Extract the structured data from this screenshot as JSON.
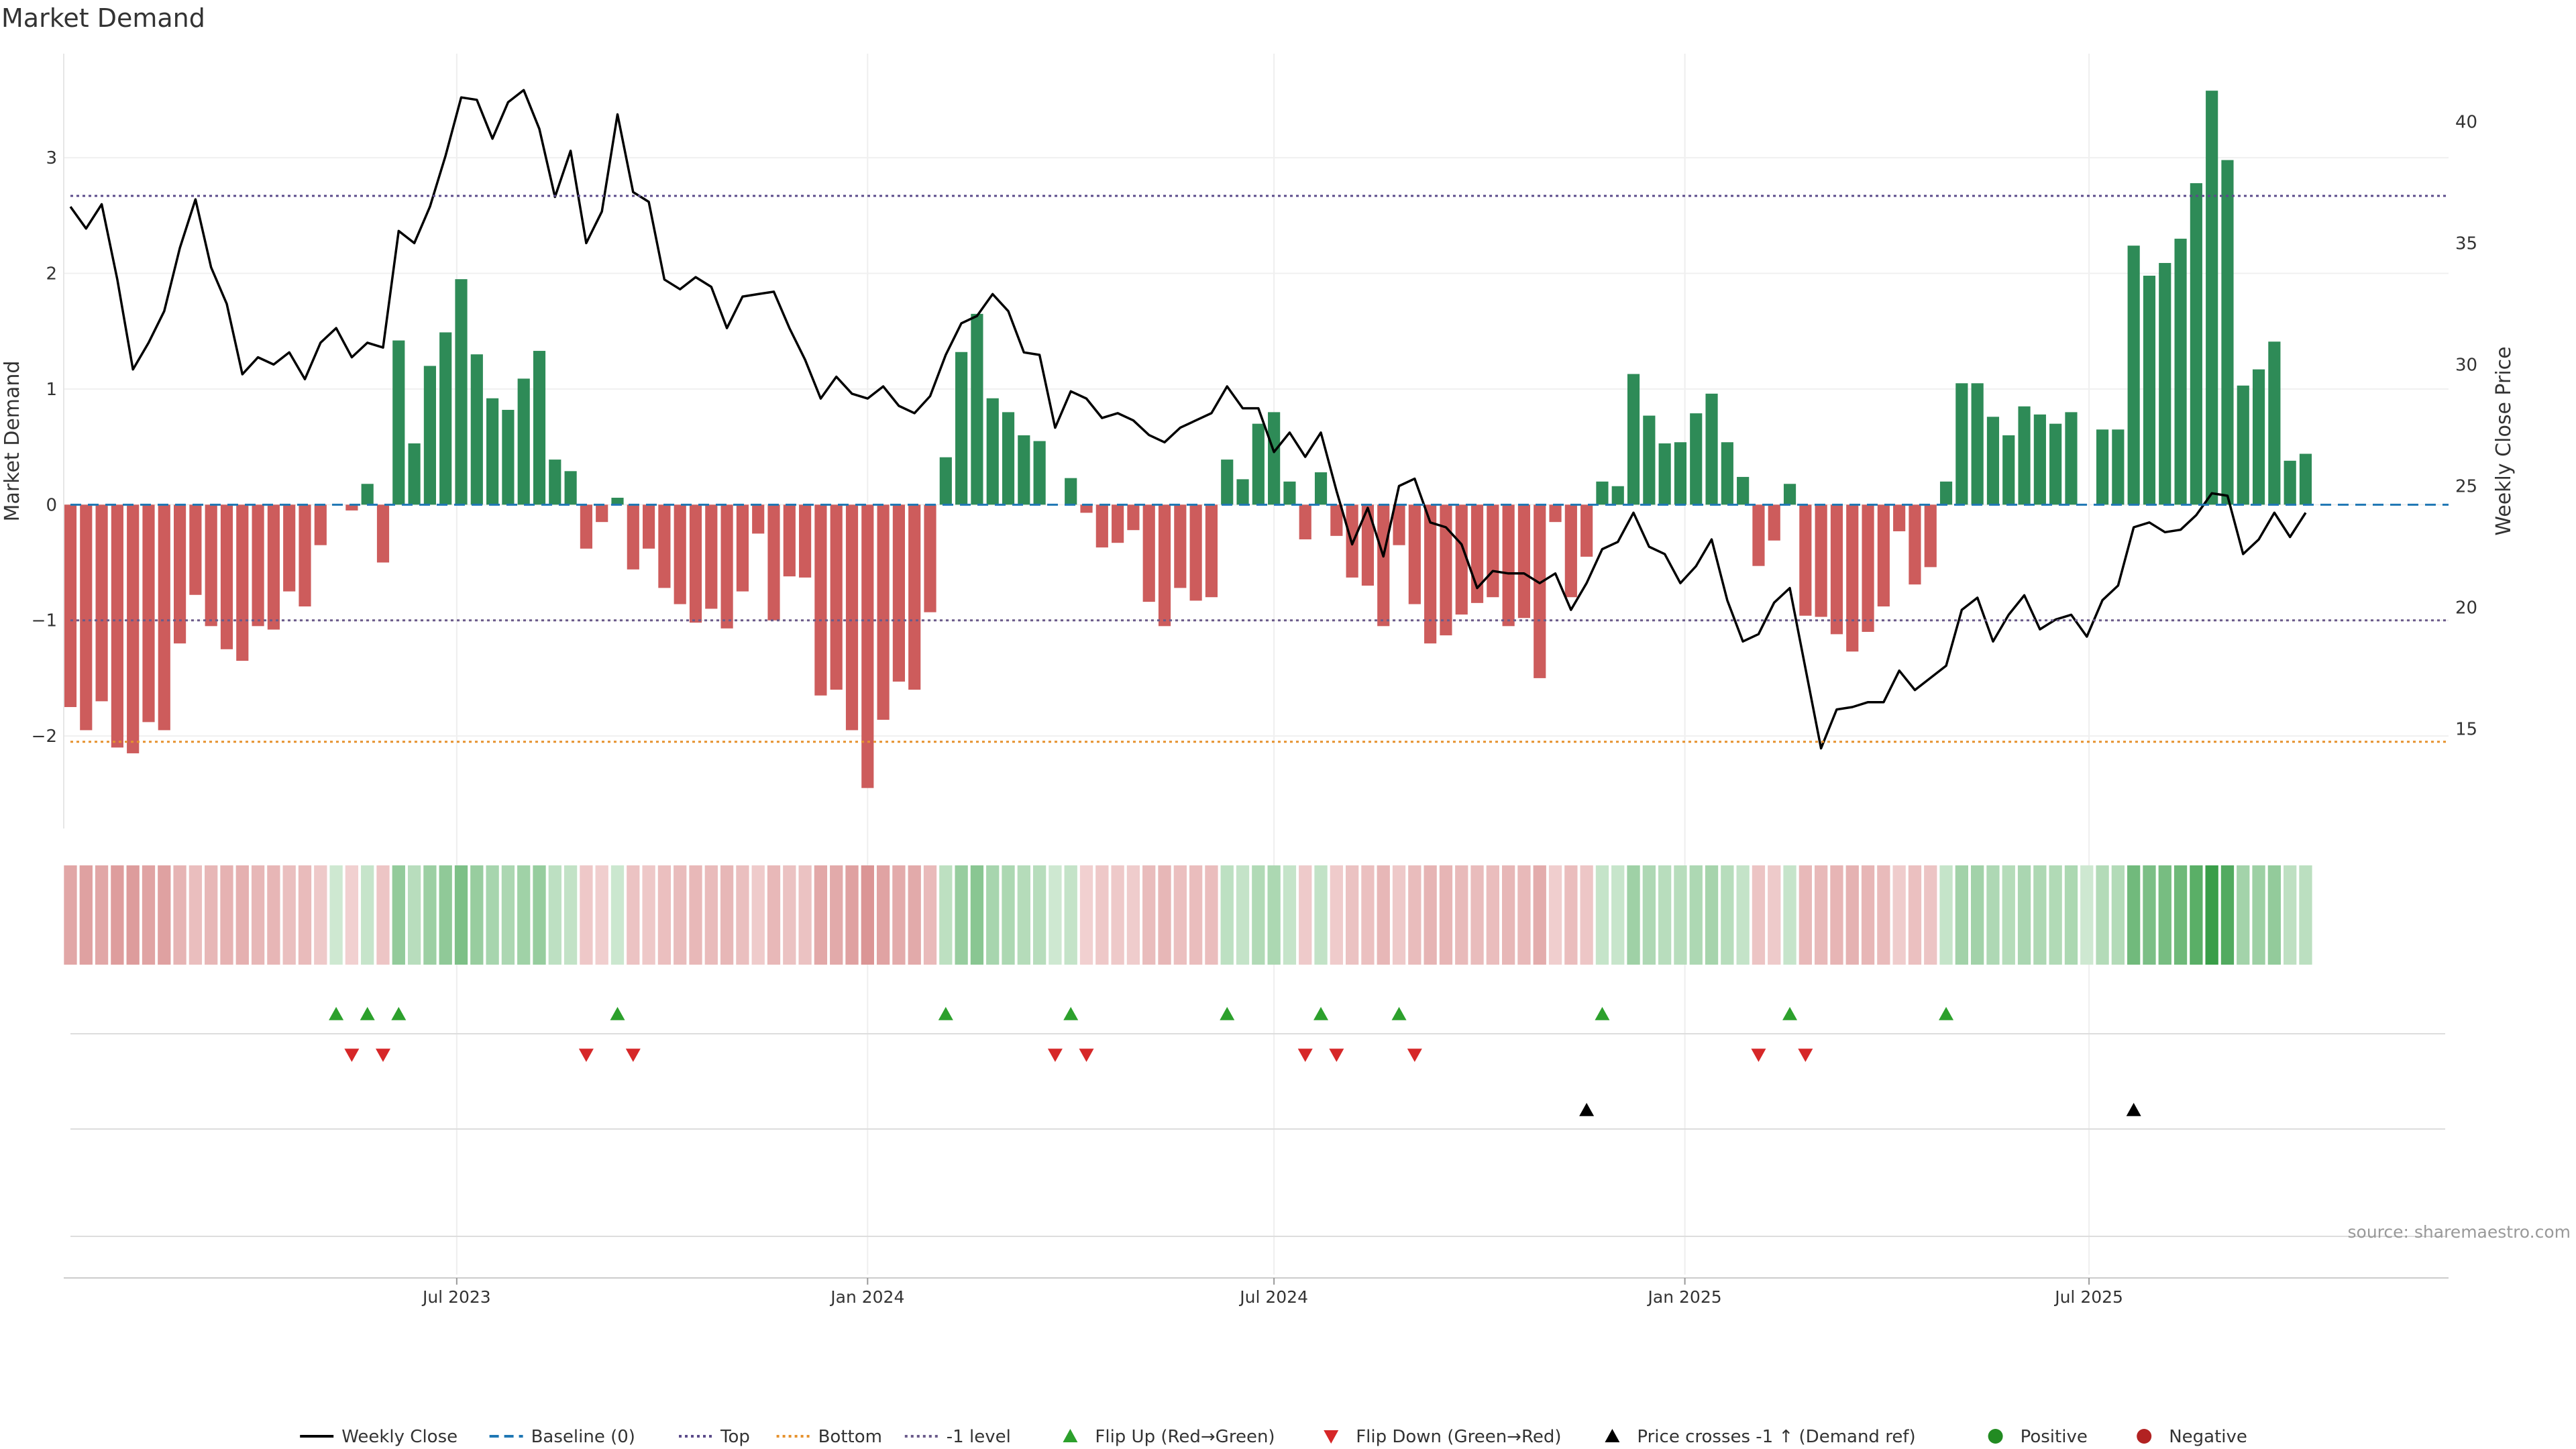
{
  "title": "Market Demand",
  "source": "source: sharemaestro.com",
  "colors": {
    "positive_bar": "#2e8b57",
    "negative_bar": "#cd5c5c",
    "price_line": "#000000",
    "baseline": "#1f77b4",
    "top_line": "#5b4b8a",
    "bottom_line": "#e6922e",
    "minus1_line": "#6a5a8a",
    "flip_up": "#2ca02c",
    "flip_down": "#d62728",
    "cross_marker": "#000000",
    "positive_dot": "#228b22",
    "negative_dot": "#b22222"
  },
  "legend": [
    {
      "label": "Weekly Close",
      "kind": "line-solid",
      "color": "#000000"
    },
    {
      "label": "Baseline (0)",
      "kind": "line-dashed",
      "color": "#1f77b4"
    },
    {
      "label": "Top",
      "kind": "line-dotted",
      "color": "#5b4b8a"
    },
    {
      "label": "Bottom",
      "kind": "line-dotted",
      "color": "#e6922e"
    },
    {
      "label": "-1 level",
      "kind": "line-dotted",
      "color": "#6a5a8a"
    },
    {
      "label": "Flip Up (Red→Green)",
      "kind": "tri-up",
      "color": "#2ca02c"
    },
    {
      "label": "Flip Down (Green→Red)",
      "kind": "tri-down",
      "color": "#d62728"
    },
    {
      "label": "Price crosses -1 ↑ (Demand ref)",
      "kind": "tri-up",
      "color": "#000000"
    },
    {
      "label": "Positive",
      "kind": "dot",
      "color": "#228b22"
    },
    {
      "label": "Negative",
      "kind": "dot",
      "color": "#b22222"
    }
  ],
  "chart_data": {
    "type": "bar",
    "title": "Market Demand",
    "x_start": "2023-01-09",
    "x_interval_weeks": 1,
    "xtick_labels": [
      "Jul 2023",
      "Jan 2024",
      "Jul 2024",
      "Jan 2025",
      "Jul 2025"
    ],
    "xtick_dates": [
      "2023-07-01",
      "2024-01-01",
      "2024-07-01",
      "2025-01-01",
      "2025-07-01"
    ],
    "x_range": [
      "2023-01-06",
      "2025-12-09"
    ],
    "y_left": {
      "label": "Market Demand",
      "range": [
        -2.8,
        3.9
      ],
      "ticks": [
        -2,
        -1,
        0,
        1,
        2,
        3
      ]
    },
    "y_right": {
      "label": "Weekly Close Price",
      "range": [
        10.9,
        42.8
      ],
      "ticks": [
        15,
        20,
        25,
        30,
        35,
        40
      ]
    },
    "reference_lines": {
      "baseline": 0,
      "top": 2.67,
      "bottom": -2.05,
      "minus_one": -1
    },
    "series": [
      {
        "name": "Market Demand",
        "type": "bar",
        "values": [
          -1.75,
          -1.95,
          -1.7,
          -2.1,
          -2.15,
          -1.88,
          -1.95,
          -1.2,
          -0.78,
          -1.05,
          -1.25,
          -1.35,
          -1.05,
          -1.08,
          -0.75,
          -0.88,
          -0.35,
          0,
          -0.05,
          0.18,
          -0.5,
          1.42,
          0.53,
          1.2,
          1.49,
          1.95,
          1.3,
          0.92,
          0.82,
          1.09,
          1.33,
          0.39,
          0.29,
          -0.38,
          -0.15,
          0.06,
          -0.56,
          -0.38,
          -0.72,
          -0.86,
          -1.02,
          -0.9,
          -1.07,
          -0.75,
          -0.25,
          -1.0,
          -0.62,
          -0.63,
          -1.65,
          -1.6,
          -1.95,
          -2.45,
          -1.86,
          -1.53,
          -1.6,
          -0.93,
          0.41,
          1.32,
          1.65,
          0.92,
          0.8,
          0.6,
          0.55,
          0,
          0.23,
          -0.07,
          -0.37,
          -0.33,
          -0.22,
          -0.84,
          -1.05,
          -0.72,
          -0.83,
          -0.8,
          0.39,
          0.22,
          0.7,
          0.8,
          0.2,
          -0.3,
          0.28,
          -0.27,
          -0.63,
          -0.7,
          -1.05,
          -0.35,
          -0.86,
          -1.2,
          -1.13,
          -0.95,
          -0.85,
          -0.8,
          -1.05,
          -0.98,
          -1.5,
          -0.15,
          -0.8,
          -0.45,
          0.2,
          0.16,
          1.13,
          0.77,
          0.53,
          0.54,
          0.79,
          0.96,
          0.54,
          0.24,
          -0.53,
          -0.31,
          0.18,
          -0.96,
          -0.97,
          -1.12,
          -1.27,
          -1.1,
          -0.88,
          -0.23,
          -0.69,
          -0.54,
          0.2,
          1.05,
          1.05,
          0.76,
          0.6,
          0.85,
          0.78,
          0.7,
          0.8,
          0,
          0.65,
          0.65,
          2.24,
          1.98,
          2.09,
          2.3,
          2.78,
          3.58,
          2.98,
          1.03,
          1.17,
          1.41,
          0.38,
          0.44
        ]
      },
      {
        "name": "Weekly Close",
        "type": "line",
        "axis": "right",
        "values": [
          36.5,
          35.6,
          36.6,
          33.5,
          29.8,
          30.9,
          32.2,
          34.8,
          36.8,
          34.0,
          32.5,
          29.6,
          30.3,
          30.0,
          30.5,
          29.4,
          30.9,
          31.5,
          30.3,
          30.9,
          30.7,
          35.5,
          35.0,
          36.5,
          38.6,
          41.0,
          40.9,
          39.3,
          40.8,
          41.3,
          39.7,
          36.9,
          38.8,
          35.0,
          36.3,
          40.3,
          37.1,
          36.7,
          33.5,
          33.1,
          33.6,
          33.2,
          31.5,
          32.8,
          32.9,
          33.0,
          31.5,
          30.2,
          28.6,
          29.5,
          28.8,
          28.6,
          29.1,
          28.3,
          28.0,
          28.7,
          30.4,
          31.7,
          32.0,
          32.9,
          32.2,
          30.5,
          30.4,
          27.4,
          28.9,
          28.6,
          27.8,
          28.0,
          27.7,
          27.1,
          26.8,
          27.4,
          27.7,
          28.0,
          29.1,
          28.2,
          28.2,
          26.4,
          27.2,
          26.2,
          27.2,
          24.8,
          22.6,
          24.1,
          22.1,
          25.0,
          25.3,
          23.5,
          23.3,
          22.6,
          20.8,
          21.5,
          21.4,
          21.4,
          21.0,
          21.4,
          19.9,
          21.0,
          22.4,
          22.7,
          23.9,
          22.5,
          22.2,
          21.0,
          21.7,
          22.8,
          20.3,
          18.6,
          18.9,
          20.2,
          20.8,
          17.5,
          14.2,
          15.8,
          15.9,
          16.1,
          16.1,
          17.4,
          16.6,
          17.1,
          17.6,
          19.9,
          20.4,
          18.6,
          19.7,
          20.5,
          19.1,
          19.5,
          19.7,
          18.8,
          20.3,
          20.9,
          23.3,
          23.5,
          23.1,
          23.2,
          23.8,
          24.7,
          24.6,
          22.2,
          22.8,
          23.9,
          22.9,
          23.9
        ]
      }
    ],
    "heat_strip": {
      "represents": "Market Demand",
      "scale": "diverging red-green"
    },
    "events": {
      "flip_up_weeks": [
        17,
        19,
        21,
        35,
        56,
        64,
        74,
        80,
        85,
        98,
        110,
        120
      ],
      "flip_down_weeks": [
        18,
        20,
        33,
        36,
        63,
        65,
        79,
        81,
        86,
        108,
        111
      ],
      "price_cross_minus1_up_weeks": [
        97,
        132
      ]
    },
    "legend_position": "bottom-center",
    "grid": true
  }
}
